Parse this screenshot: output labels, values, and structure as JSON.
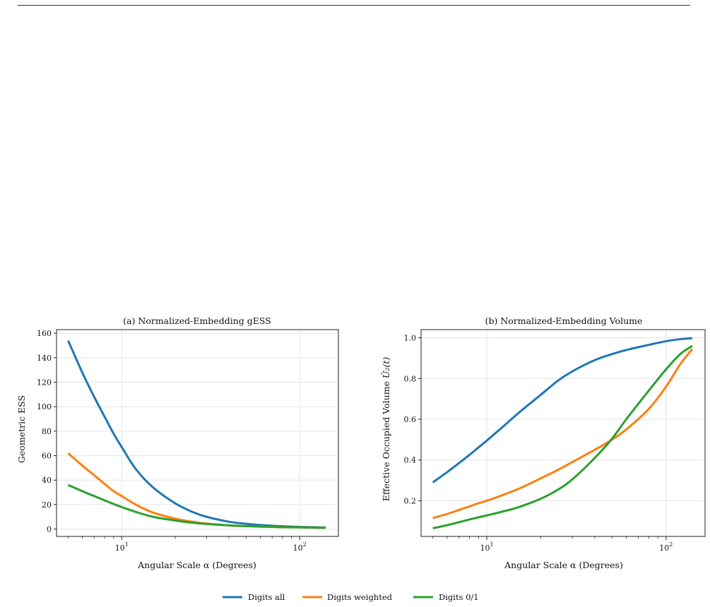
{
  "chart_data": [
    {
      "type": "line",
      "title": "(a) Normalized-Embedding gESS",
      "xlabel": "Angular Scale α (Degrees)",
      "ylabel": "Geometric ESS",
      "xscale": "log",
      "xlim": [
        4.3,
        165
      ],
      "ylim": [
        -6,
        163
      ],
      "yticks": [
        0,
        20,
        40,
        60,
        80,
        100,
        120,
        140,
        160
      ],
      "xticks_major": [
        {
          "value": 10,
          "base": "10",
          "exp": "1"
        },
        {
          "value": 100,
          "base": "10",
          "exp": "2"
        }
      ],
      "grid": true,
      "series": [
        {
          "name": "Digits all",
          "color": "#1f77b4",
          "x": [
            5,
            6,
            7,
            8,
            9,
            10,
            12,
            15,
            20,
            25,
            30,
            40,
            50,
            60,
            80,
            100,
            120,
            140
          ],
          "y": [
            154,
            128,
            108,
            92,
            78,
            67,
            49,
            34,
            21,
            14,
            10,
            6,
            4.3,
            3.3,
            2.3,
            1.8,
            1.5,
            1.3
          ]
        },
        {
          "name": "Digits weighted",
          "color": "#ff7f0e",
          "x": [
            5,
            6,
            7,
            8,
            9,
            10,
            12,
            15,
            20,
            25,
            30,
            40,
            50,
            60,
            80,
            100,
            120,
            140
          ],
          "y": [
            62,
            52,
            44,
            37,
            31,
            27,
            20,
            13.5,
            8.5,
            6,
            4.5,
            3,
            2.4,
            2,
            1.6,
            1.4,
            1.2,
            1.1
          ]
        },
        {
          "name": "Digits 0/1",
          "color": "#2ca02c",
          "x": [
            5,
            6,
            7,
            8,
            9,
            10,
            12,
            15,
            20,
            25,
            30,
            40,
            50,
            60,
            80,
            100,
            120,
            140
          ],
          "y": [
            36,
            31,
            27,
            23.5,
            20.5,
            18,
            14,
            10,
            7,
            5.2,
            4.2,
            3,
            2.4,
            2,
            1.6,
            1.4,
            1.2,
            1.1
          ]
        }
      ]
    },
    {
      "type": "line",
      "title": "(b) Normalized-Embedding Volume",
      "xlabel": "Angular Scale α (Degrees)",
      "ylabel_text": "Effective Occupied Volume ",
      "ylabel_math": "Û₂(t)",
      "xscale": "log",
      "xlim": [
        4.3,
        165
      ],
      "ylim": [
        0.025,
        1.04
      ],
      "yticks": [
        0.2,
        0.4,
        0.6,
        0.8,
        1.0
      ],
      "xticks_major": [
        {
          "value": 10,
          "base": "10",
          "exp": "1"
        },
        {
          "value": 100,
          "base": "10",
          "exp": "2"
        }
      ],
      "grid": true,
      "series": [
        {
          "name": "Digits all",
          "color": "#1f77b4",
          "x": [
            5,
            6,
            7,
            8,
            9,
            10,
            12,
            15,
            20,
            25,
            30,
            40,
            50,
            60,
            80,
            100,
            120,
            140
          ],
          "y": [
            0.29,
            0.34,
            0.385,
            0.425,
            0.462,
            0.495,
            0.555,
            0.63,
            0.72,
            0.79,
            0.835,
            0.89,
            0.92,
            0.94,
            0.965,
            0.983,
            0.993,
            0.998
          ]
        },
        {
          "name": "Digits weighted",
          "color": "#ff7f0e",
          "x": [
            5,
            6,
            7,
            8,
            9,
            10,
            12,
            15,
            20,
            25,
            30,
            40,
            50,
            60,
            80,
            100,
            120,
            140
          ],
          "y": [
            0.115,
            0.135,
            0.155,
            0.172,
            0.188,
            0.2,
            0.225,
            0.258,
            0.31,
            0.352,
            0.39,
            0.45,
            0.5,
            0.55,
            0.65,
            0.76,
            0.87,
            0.945
          ]
        },
        {
          "name": "Digits 0/1",
          "color": "#2ca02c",
          "x": [
            5,
            6,
            7,
            8,
            9,
            10,
            12,
            15,
            20,
            25,
            30,
            40,
            50,
            60,
            80,
            100,
            120,
            140
          ],
          "y": [
            0.065,
            0.08,
            0.095,
            0.108,
            0.119,
            0.128,
            0.145,
            0.168,
            0.21,
            0.255,
            0.305,
            0.41,
            0.505,
            0.6,
            0.74,
            0.845,
            0.92,
            0.96
          ]
        }
      ]
    }
  ],
  "legend": {
    "placement": "bottom-center",
    "entries": [
      {
        "label": "Digits all",
        "color": "#1f77b4"
      },
      {
        "label": "Digits weighted",
        "color": "#ff7f0e"
      },
      {
        "label": "Digits 0/1",
        "color": "#2ca02c"
      }
    ]
  }
}
